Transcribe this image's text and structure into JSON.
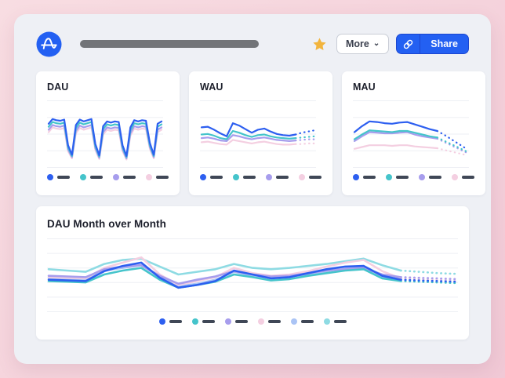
{
  "header": {
    "more_label": "More",
    "more_chevron": "⌄",
    "share_label": "Share"
  },
  "colors": {
    "page_bg_start": "#f8dde2",
    "page_bg_end": "#f1c9d6",
    "window_bg": "#eef0f5",
    "card_bg": "#ffffff",
    "gridline": "#edeff4",
    "title_text": "#1c1f2b",
    "legend_dash": "#3f4756",
    "brand_blue": "#2360f2",
    "star_gold": "#f2b43d",
    "skeleton_bar": "#727478",
    "series_blue": "#2d5ff0",
    "series_teal": "#45c4cb",
    "series_purple": "#a79ded",
    "series_pink": "#f4cfe1",
    "series_light_blue": "#aac4f5",
    "series_light_teal": "#8edbe3"
  },
  "chart_data": [
    {
      "type": "line",
      "title": "DAU",
      "ylim": [
        0,
        100
      ],
      "gridlines": 5,
      "stroke_width": 2.2,
      "projection_from": null,
      "legend_position": "bottom",
      "series": [
        {
          "name": "blue",
          "color": "#2d5ff0",
          "values": [
            66,
            74,
            72,
            71,
            73,
            30,
            14,
            64,
            73,
            70,
            72,
            74,
            32,
            13,
            62,
            70,
            68,
            70,
            69,
            30,
            12,
            60,
            72,
            70,
            72,
            71,
            34,
            14,
            66,
            70
          ]
        },
        {
          "name": "teal",
          "color": "#45c4cb",
          "values": [
            61,
            69,
            67,
            66,
            68,
            26,
            12,
            59,
            68,
            65,
            67,
            69,
            28,
            11,
            57,
            65,
            63,
            65,
            64,
            26,
            10,
            55,
            67,
            65,
            67,
            66,
            30,
            12,
            61,
            65
          ]
        },
        {
          "name": "purple",
          "color": "#a79ded",
          "values": [
            56,
            64,
            62,
            61,
            63,
            23,
            10,
            54,
            63,
            60,
            62,
            64,
            25,
            9,
            52,
            60,
            58,
            60,
            59,
            23,
            8,
            50,
            62,
            60,
            62,
            61,
            27,
            10,
            56,
            60
          ]
        },
        {
          "name": "pink",
          "color": "#f4cfe1",
          "values": [
            52,
            60,
            58,
            57,
            59,
            20,
            8,
            50,
            59,
            56,
            58,
            60,
            22,
            7,
            48,
            56,
            54,
            56,
            55,
            20,
            6,
            46,
            58,
            56,
            58,
            57,
            24,
            8,
            52,
            56
          ]
        }
      ]
    },
    {
      "type": "line",
      "title": "WAU",
      "ylim": [
        0,
        100
      ],
      "gridlines": 5,
      "stroke_width": 2.2,
      "projection_from": 15,
      "legend_position": "bottom",
      "series": [
        {
          "name": "blue",
          "color": "#2d5ff0",
          "values": [
            60,
            61,
            56,
            50,
            45,
            67,
            63,
            57,
            51,
            56,
            58,
            53,
            49,
            47,
            46,
            48,
            51,
            53,
            55
          ]
        },
        {
          "name": "teal",
          "color": "#45c4cb",
          "values": [
            48,
            49,
            46,
            42,
            40,
            54,
            51,
            47,
            44,
            47,
            48,
            45,
            43,
            42,
            41,
            42,
            43,
            44,
            45
          ]
        },
        {
          "name": "purple",
          "color": "#a79ded",
          "values": [
            42,
            43,
            41,
            38,
            37,
            47,
            45,
            42,
            40,
            42,
            43,
            41,
            39,
            38,
            37,
            38,
            39,
            40,
            40
          ]
        },
        {
          "name": "pink",
          "color": "#f4cfe1",
          "values": [
            35,
            36,
            34,
            32,
            31,
            39,
            37,
            35,
            33,
            35,
            36,
            34,
            32,
            31,
            31,
            32,
            32,
            33,
            33
          ]
        }
      ]
    },
    {
      "type": "line",
      "title": "MAU",
      "ylim": [
        0,
        100
      ],
      "gridlines": 5,
      "stroke_width": 2.2,
      "projection_from": 11,
      "legend_position": "bottom",
      "series": [
        {
          "name": "blue",
          "color": "#2d5ff0",
          "values": [
            52,
            62,
            70,
            69,
            67,
            66,
            68,
            69,
            65,
            61,
            57,
            54,
            47,
            39,
            31,
            23
          ]
        },
        {
          "name": "teal",
          "color": "#45c4cb",
          "values": [
            40,
            48,
            55,
            54,
            53,
            52,
            54,
            54,
            51,
            48,
            45,
            43,
            37,
            31,
            25,
            19
          ]
        },
        {
          "name": "purple",
          "color": "#a79ded",
          "values": [
            37,
            45,
            52,
            51,
            50,
            50,
            51,
            52,
            48,
            45,
            43,
            41,
            35,
            29,
            23,
            17
          ]
        },
        {
          "name": "pink",
          "color": "#f4cfe1",
          "values": [
            24,
            27,
            30,
            30,
            30,
            29,
            30,
            30,
            28,
            27,
            26,
            25,
            22,
            19,
            16,
            13
          ]
        }
      ]
    },
    {
      "type": "line",
      "title": "DAU Month over Month",
      "ylim": [
        0,
        100
      ],
      "gridlines": 6,
      "stroke_width": 2.6,
      "projection_from": 19,
      "legend_position": "bottom",
      "series": [
        {
          "name": "blue",
          "color": "#2d5ff0",
          "values": [
            42,
            41,
            40,
            55,
            63,
            68,
            45,
            30,
            34,
            40,
            56,
            50,
            44,
            46,
            52,
            58,
            62,
            63,
            48,
            42,
            41,
            40,
            39
          ]
        },
        {
          "name": "teal",
          "color": "#45c4cb",
          "values": [
            40,
            39,
            38,
            50,
            56,
            60,
            42,
            30,
            34,
            39,
            50,
            46,
            41,
            43,
            48,
            52,
            56,
            58,
            44,
            40,
            39,
            38,
            37
          ]
        },
        {
          "name": "purple",
          "color": "#a79ded",
          "values": [
            48,
            47,
            46,
            58,
            62,
            64,
            48,
            36,
            42,
            47,
            55,
            50,
            47,
            48,
            52,
            56,
            58,
            60,
            50,
            46,
            45,
            44,
            43
          ]
        },
        {
          "name": "pink",
          "color": "#f4cfe1",
          "values": [
            46,
            45,
            44,
            60,
            68,
            76,
            50,
            34,
            40,
            46,
            60,
            52,
            48,
            50,
            55,
            62,
            68,
            72,
            55,
            44,
            43,
            42,
            41
          ]
        },
        {
          "name": "light-blue",
          "color": "#aac4f5",
          "values": [
            44,
            43,
            42,
            56,
            60,
            64,
            46,
            32,
            36,
            42,
            54,
            48,
            45,
            47,
            50,
            55,
            60,
            61,
            46,
            43,
            42,
            41,
            40
          ]
        },
        {
          "name": "light-teal",
          "color": "#8edbe3",
          "values": [
            58,
            56,
            54,
            66,
            72,
            74,
            62,
            50,
            54,
            58,
            66,
            60,
            58,
            60,
            63,
            66,
            70,
            74,
            64,
            56,
            54,
            52,
            51
          ]
        }
      ]
    }
  ]
}
